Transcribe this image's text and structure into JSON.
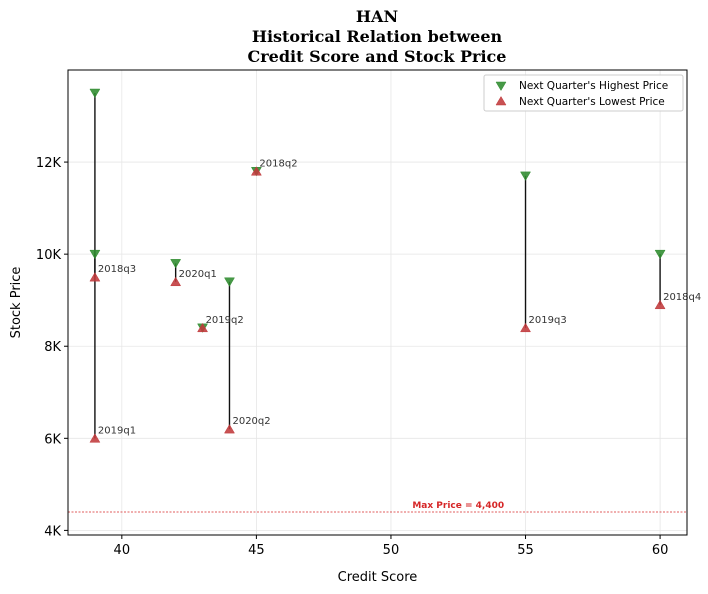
{
  "chart_data": {
    "type": "scatter",
    "title_lines": [
      "HAN",
      "Historical Relation between",
      "Credit Score and Stock Price"
    ],
    "xlabel": "Credit Score",
    "ylabel": "Stock Price",
    "xlim": [
      38,
      61
    ],
    "ylim": [
      3900,
      14000
    ],
    "x_ticks": [
      40,
      45,
      50,
      55,
      60
    ],
    "x_tick_labels": [
      "40",
      "45",
      "50",
      "55",
      "60"
    ],
    "y_ticks": [
      4000,
      6000,
      8000,
      10000,
      12000
    ],
    "y_tick_labels": [
      "4K",
      "6K",
      "8K",
      "10K",
      "12K"
    ],
    "grid": true,
    "legend_position": "top-right",
    "series": [
      {
        "name": "Next Quarter's Highest Price",
        "marker": "triangle-down",
        "color": "#2e8b2e"
      },
      {
        "name": "Next Quarter's Lowest Price",
        "marker": "triangle-up",
        "color": "#c0393b"
      }
    ],
    "points": [
      {
        "label": "2018q2",
        "x": 45,
        "high": 11800,
        "low": 11800
      },
      {
        "label": "2018q3",
        "x": 39,
        "high": 10000,
        "low": 9500
      },
      {
        "label": "2018q4",
        "x": 60,
        "high": 10000,
        "low": 8900
      },
      {
        "label": "2019q1",
        "x": 39,
        "high": 13500,
        "low": 6000
      },
      {
        "label": "2019q2",
        "x": 43,
        "high": 8400,
        "low": 8400
      },
      {
        "label": "2019q3",
        "x": 55,
        "high": 11700,
        "low": 8400
      },
      {
        "label": "2020q1",
        "x": 42,
        "high": 9800,
        "low": 9400
      },
      {
        "label": "2020q2",
        "x": 44,
        "high": 9400,
        "low": 6200
      }
    ],
    "reference_line": {
      "value": 4400,
      "label": "Max Price = 4,400",
      "color": "#d62728"
    }
  }
}
